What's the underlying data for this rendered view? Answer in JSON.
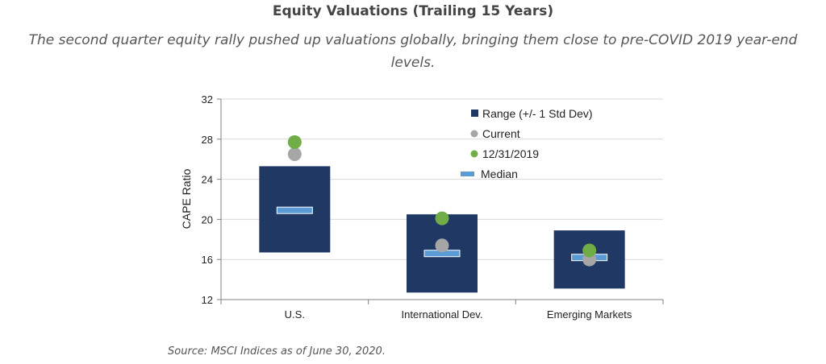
{
  "chart_data": {
    "type": "range-dot",
    "title": "Equity Valuations (Trailing 15 Years)",
    "subtitle": "The second quarter equity rally pushed up valuations globally, bringing them close to pre-COVID 2019 year-end levels.",
    "ylabel": "CAPE Ratio",
    "xlabel": "",
    "ylim": [
      12,
      32
    ],
    "yticks": [
      "12",
      "16",
      "20",
      "24",
      "28",
      "32"
    ],
    "grid": true,
    "legend_position": "top-right",
    "categories": [
      "U.S.",
      "International Dev.",
      "Emerging Markets"
    ],
    "series": [
      {
        "name": "Range (+/- 1 Std Dev)",
        "low": [
          16.7,
          12.7,
          13.1
        ],
        "high": [
          25.3,
          20.5,
          18.9
        ]
      },
      {
        "name": "Current",
        "values": [
          26.5,
          17.4,
          16.0
        ]
      },
      {
        "name": "12/31/2019",
        "values": [
          27.7,
          20.1,
          16.9
        ]
      },
      {
        "name": "Median",
        "values": [
          20.9,
          16.6,
          16.2
        ]
      }
    ],
    "colors": {
      "range": "#1f3864",
      "current": "#a6a6a6",
      "yearend": "#70ad47",
      "median": "#5b9bd5",
      "grid": "#d9d9d9",
      "axis": "#808080"
    }
  },
  "source": "Source: MSCI Indices as of June 30, 2020."
}
